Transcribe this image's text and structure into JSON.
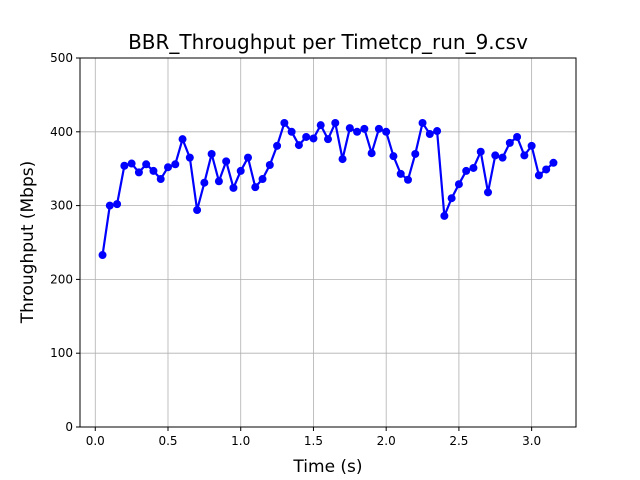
{
  "chart_data": {
    "type": "line",
    "title": "BBR_Throughput per Timetcp_run_9.csv",
    "x_label": "Time (s)",
    "y_label": "Throughput (Mbps)",
    "x": [
      0.05,
      0.1,
      0.15,
      0.2,
      0.25,
      0.3,
      0.35,
      0.4,
      0.45,
      0.5,
      0.55,
      0.6,
      0.65,
      0.7,
      0.75,
      0.8,
      0.85,
      0.9,
      0.95,
      1.0,
      1.05,
      1.1,
      1.15,
      1.2,
      1.25,
      1.3,
      1.35,
      1.4,
      1.45,
      1.5,
      1.55,
      1.6,
      1.65,
      1.7,
      1.75,
      1.8,
      1.85,
      1.9,
      1.95,
      2.0,
      2.05,
      2.1,
      2.15,
      2.2,
      2.25,
      2.3,
      2.35,
      2.4,
      2.45,
      2.5,
      2.55,
      2.6,
      2.65,
      2.7,
      2.75,
      2.8,
      2.85,
      2.9,
      2.95,
      3.0,
      3.05,
      3.1,
      3.15
    ],
    "series": [
      {
        "name": "Throughput",
        "color": "#0000ff",
        "values": [
          233,
          300,
          302,
          354,
          357,
          345,
          356,
          347,
          336,
          352,
          356,
          390,
          365,
          294,
          331,
          370,
          333,
          360,
          324,
          347,
          365,
          325,
          336,
          355,
          381,
          412,
          400,
          382,
          393,
          391,
          409,
          390,
          412,
          363,
          405,
          400,
          404,
          371,
          404,
          400,
          367,
          343,
          335,
          370,
          412,
          397,
          401,
          286,
          310,
          329,
          347,
          351,
          373,
          318,
          368,
          365,
          385,
          393,
          368,
          381,
          341,
          349,
          358
        ]
      }
    ],
    "xlim": [
      -0.105,
      3.305
    ],
    "xticks": [
      {
        "value": 0,
        "label": "0.0"
      },
      0.5,
      {
        "value": 1,
        "label": "1.0"
      },
      1.5,
      {
        "value": 2,
        "label": "2.0"
      },
      2.5,
      {
        "value": 3,
        "label": "3.0"
      }
    ],
    "ylim": [
      0,
      500
    ],
    "yticks": [
      0,
      100,
      200,
      300,
      400,
      500
    ],
    "grid": true
  }
}
